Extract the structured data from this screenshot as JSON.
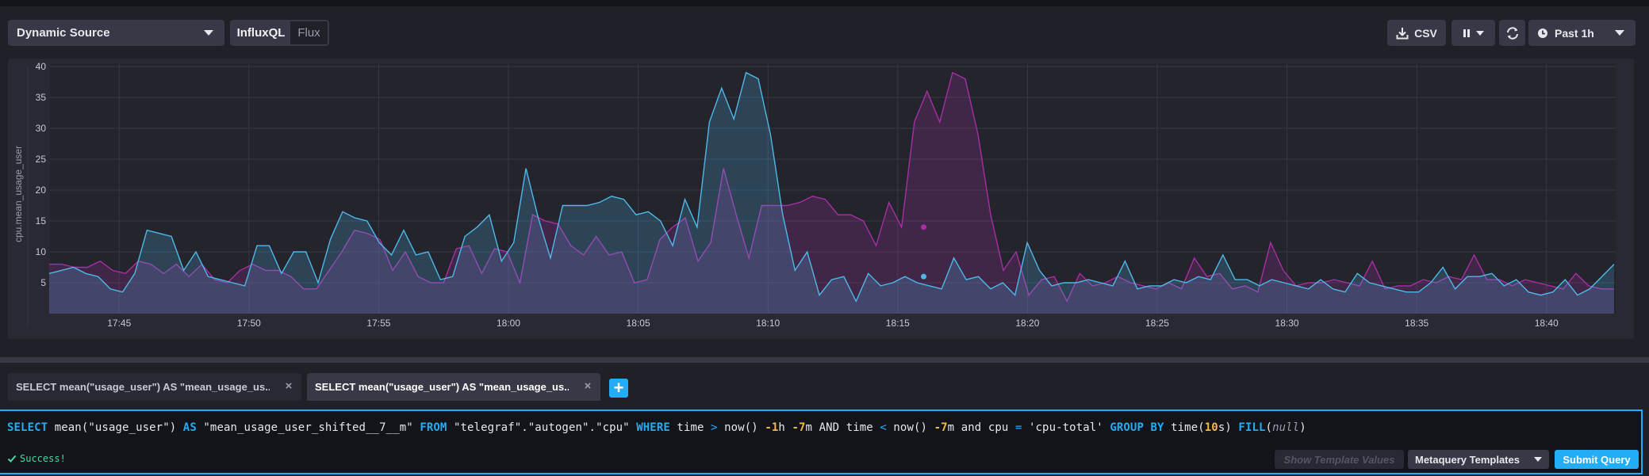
{
  "toolbar": {
    "source_label": "Dynamic Source",
    "lang_options": [
      "InfluxQL",
      "Flux"
    ],
    "lang_selected": "InfluxQL",
    "csv_label": "CSV",
    "pause_icon": "pause-icon",
    "refresh_icon": "refresh-icon",
    "time_range_label": "Past 1h"
  },
  "chart_data": {
    "type": "area",
    "ylabel": "cpu.mean_usage_user",
    "ylim": [
      0,
      40.5
    ],
    "yticks": [
      5,
      10,
      15,
      20,
      25,
      30,
      35,
      40
    ],
    "x_start": "17:42:20",
    "x_end": "18:42:40",
    "xticks": [
      "17:45",
      "17:50",
      "17:55",
      "18:00",
      "18:05",
      "18:10",
      "18:15",
      "18:20",
      "18:25",
      "18:30",
      "18:35",
      "18:40"
    ],
    "grid": true,
    "colors": {
      "series_a": "#4fb8e8",
      "series_b": "#a62fa3"
    },
    "series": [
      {
        "values": [
          6.5,
          7,
          7.5,
          6.5,
          6,
          4,
          3.5,
          6.5,
          13.5,
          13,
          12.5,
          7,
          10,
          6,
          5.5,
          5,
          4.5,
          11,
          11,
          6.5,
          10,
          10,
          5,
          12,
          16.5,
          15.5,
          15,
          11.5,
          9.5,
          13.5,
          9.5,
          10,
          5.5,
          6,
          12.5,
          14,
          16,
          8.5,
          11.5,
          23.5,
          15.5,
          9,
          17.5,
          17.5,
          17.5,
          18,
          19,
          18.5,
          16,
          16.5,
          15,
          11,
          18.5,
          14,
          31,
          36.5,
          31.5,
          39,
          38,
          29,
          16,
          7,
          10,
          3,
          5.5,
          6,
          2,
          6.5,
          4.5,
          5,
          6,
          5,
          4.5,
          4,
          9,
          5.5,
          6,
          4,
          5,
          3,
          11.5,
          7,
          4.5,
          5,
          5,
          5.5,
          5,
          4.5,
          8.5,
          4,
          4.5,
          4.5,
          5.5,
          5,
          6,
          5.5,
          9.5,
          5.5,
          5.5,
          4.5,
          5.5,
          5,
          4.5,
          4,
          5.5,
          4,
          3.5,
          6.5,
          5,
          4.5,
          4,
          3.5,
          3.5,
          5,
          7.5,
          4,
          6,
          6,
          6.5,
          4.5,
          5.5,
          3.5,
          3,
          3.5,
          5.5,
          3,
          4,
          6,
          8
        ]
      },
      {
        "values": [
          8,
          8,
          7.5,
          7.5,
          8.5,
          7,
          6.5,
          8.5,
          8,
          6.5,
          8,
          6,
          8,
          5.5,
          5,
          7,
          8,
          7,
          7,
          6,
          4,
          4,
          7,
          10,
          13.5,
          13,
          12,
          7,
          10,
          6,
          5,
          5,
          10.5,
          11,
          6.5,
          10.5,
          10,
          5,
          16,
          15,
          14.5,
          11,
          9.5,
          12.5,
          9.5,
          10,
          5,
          5.5,
          12,
          14,
          15.5,
          8.5,
          11.5,
          23.5,
          16,
          9,
          17.5,
          17.5,
          17.5,
          18,
          19,
          18.5,
          16,
          16,
          15,
          11,
          18,
          14,
          31,
          36,
          31,
          39,
          38,
          29,
          16,
          7,
          10,
          3,
          5.5,
          6,
          2,
          6.5,
          4.5,
          5,
          6,
          5,
          4.5,
          4,
          5,
          4,
          9,
          6,
          6.5,
          4,
          4.5,
          3.5,
          11.5,
          7,
          4.5,
          5,
          5,
          5.5,
          5,
          4.5,
          8.5,
          4,
          4.5,
          4.5,
          5.5,
          5,
          6,
          5.5,
          9.5,
          5.5,
          5.5,
          4.5,
          5.5,
          5,
          4.5,
          4,
          6.5,
          4.5,
          4,
          4
        ]
      }
    ],
    "hover_points": [
      {
        "series": 0,
        "x": "18:16:00",
        "y": 6
      },
      {
        "series": 1,
        "x": "18:16:00",
        "y": 14
      }
    ]
  },
  "tabs": [
    {
      "label": "SELECT mean(\"usage_user\") AS \"mean_usage_us...",
      "active": false
    },
    {
      "label": "SELECT mean(\"usage_user\") AS \"mean_usage_us...",
      "active": true
    }
  ],
  "add_tab_label": "+",
  "close_label": "×",
  "editor": {
    "tokens": [
      {
        "t": "SELECT",
        "c": "kw"
      },
      {
        "t": " mean(",
        "c": "str"
      },
      {
        "t": "\"usage_user\"",
        "c": "str"
      },
      {
        "t": ") ",
        "c": "str"
      },
      {
        "t": "AS",
        "c": "kw"
      },
      {
        "t": " \"mean_usage_user_shifted__7__m\" ",
        "c": "str"
      },
      {
        "t": "FROM",
        "c": "kw"
      },
      {
        "t": " \"telegraf\".\"autogen\".\"cpu\" ",
        "c": "str"
      },
      {
        "t": "WHERE",
        "c": "kw"
      },
      {
        "t": " time ",
        "c": "str"
      },
      {
        "t": ">",
        "c": "op"
      },
      {
        "t": " now() ",
        "c": "str"
      },
      {
        "t": "-1",
        "c": "num"
      },
      {
        "t": "h ",
        "c": "str"
      },
      {
        "t": "-7",
        "c": "num"
      },
      {
        "t": "m AND time ",
        "c": "str"
      },
      {
        "t": "<",
        "c": "op"
      },
      {
        "t": " now() ",
        "c": "str"
      },
      {
        "t": "-7",
        "c": "num"
      },
      {
        "t": "m and cpu ",
        "c": "str"
      },
      {
        "t": "=",
        "c": "op"
      },
      {
        "t": " 'cpu-total' ",
        "c": "str"
      },
      {
        "t": "GROUP BY",
        "c": "kw"
      },
      {
        "t": " time(",
        "c": "str"
      },
      {
        "t": "10",
        "c": "num"
      },
      {
        "t": "s) ",
        "c": "str"
      },
      {
        "t": "FILL",
        "c": "kw"
      },
      {
        "t": "(",
        "c": "str"
      },
      {
        "t": "null",
        "c": "nul"
      },
      {
        "t": ")",
        "c": "str"
      }
    ],
    "status": "Success!",
    "show_template_label": "Show Template Values",
    "metaquery_label": "Metaquery Templates",
    "submit_label": "Submit Query"
  }
}
